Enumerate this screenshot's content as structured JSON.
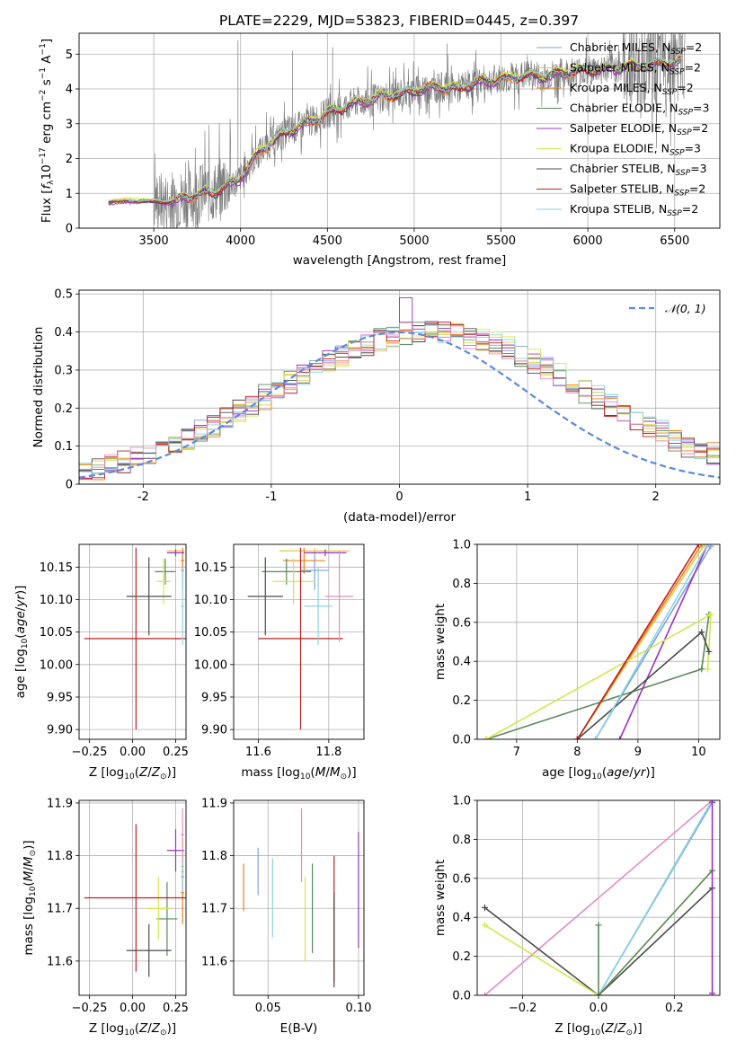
{
  "title": "PLATE=2229, MJD=53823, FIBERID=0445, z=0.397",
  "colors": {
    "Chabrier MILES": "#7f9fe6",
    "Salpeter MILES": "#e8c94a",
    "Kroupa MILES": "#f07f1a",
    "Chabrier ELODIE": "#5a8a5a",
    "Salpeter ELODIE": "#9b30c0",
    "Kroupa ELODIE": "#d4e64a",
    "Chabrier STELIB": "#4b4b4b",
    "Salpeter STELIB": "#c02020",
    "Kroupa STELIB": "#88d4e0",
    "pink": "#e88ac0",
    "dashed": "#5b8adf",
    "data": "#777777"
  },
  "legend_entries": [
    {
      "name": "Chabrier MILES",
      "sub": "2",
      "lib": "MILES"
    },
    {
      "name": "Salpeter MILES",
      "sub": "2",
      "lib": "MILES"
    },
    {
      "name": "Kroupa MILES",
      "sub": "2",
      "lib": "MILES"
    },
    {
      "name": "Chabrier ELODIE",
      "sub": "3",
      "lib": "ELODIE"
    },
    {
      "name": "Salpeter ELODIE",
      "sub": "2",
      "lib": "ELODIE"
    },
    {
      "name": "Kroupa ELODIE",
      "sub": "3",
      "lib": "ELODIE"
    },
    {
      "name": "Chabrier STELIB",
      "sub": "3",
      "lib": "STELIB"
    },
    {
      "name": "Salpeter STELIB",
      "sub": "2",
      "lib": "STELIB"
    },
    {
      "name": "Kroupa STELIB",
      "sub": "2",
      "lib": "STELIB"
    }
  ],
  "chart_data": [
    {
      "id": "spectrum",
      "type": "line",
      "xlabel": "wavelength [Angstrom, rest frame]",
      "ylabel": "Flux [f_λ 10^-17 erg cm^-2 s^-1 A^-1]",
      "xlim": [
        3070,
        6760
      ],
      "ylim": [
        0,
        5.6
      ],
      "xticks": [
        3500,
        4000,
        4500,
        5000,
        5500,
        6000,
        6500
      ],
      "yticks": [
        0,
        1,
        2,
        3,
        4,
        5
      ],
      "model": {
        "x": [
          3240,
          3280,
          3320,
          3380,
          3440,
          3500,
          3560,
          3620,
          3700,
          3780,
          3850,
          3930,
          3980,
          4050,
          4130,
          4200,
          4280,
          4350,
          4420,
          4500,
          4580,
          4660,
          4750,
          4850,
          4950,
          5050,
          5150,
          5250,
          5350,
          5450,
          5550,
          5650,
          5750,
          5850,
          5950,
          6050,
          6150,
          6250,
          6350,
          6450,
          6540
        ],
        "y": [
          0.72,
          0.8,
          0.78,
          0.76,
          0.8,
          0.76,
          0.74,
          0.78,
          0.9,
          1.0,
          1.05,
          1.25,
          1.35,
          1.8,
          2.3,
          2.55,
          2.8,
          2.95,
          3.1,
          3.3,
          3.45,
          3.6,
          3.7,
          3.8,
          3.9,
          4.0,
          4.05,
          4.0,
          4.2,
          4.25,
          4.3,
          4.4,
          4.35,
          4.45,
          4.5,
          4.55,
          4.6,
          4.65,
          4.7,
          4.75,
          4.8
        ]
      },
      "grid": true,
      "legend": "top-right"
    },
    {
      "id": "residuals",
      "type": "step",
      "xlabel": "(data-model)/error",
      "ylabel": "Normed distribution",
      "xlim": [
        -2.5,
        2.5
      ],
      "ylim": [
        0,
        0.51
      ],
      "xticks": [
        -2,
        -1,
        0,
        1,
        2
      ],
      "yticks": [
        0,
        0.1,
        0.2,
        0.3,
        0.4,
        0.5
      ],
      "gaussian_label": "𝒩(0, 1)",
      "legend": "top-right",
      "grid": true
    },
    {
      "id": "age_vs_Z",
      "type": "errorbar",
      "xlabel": "Z [log10(Z/Z⊙)]",
      "ylabel": "age [log10(age/yr)]",
      "xlim": [
        -0.31,
        0.31
      ],
      "ylim": [
        9.885,
        10.185
      ],
      "xticks": [
        -0.25,
        0,
        0.25
      ],
      "xticklabels": [
        "−0.25",
        "0.00",
        "0.25"
      ],
      "yticks": [
        9.9,
        9.95,
        10.0,
        10.05,
        10.1,
        10.15
      ],
      "yticklabels": [
        "9.90",
        "9.95",
        "10.00",
        "10.05",
        "10.10",
        "10.15"
      ],
      "points": [
        {
          "s": "Chabrier MILES",
          "x": 0.29,
          "y": 10.145,
          "xerr": 0.01,
          "yerr": 0.03
        },
        {
          "s": "Salpeter MILES",
          "x": 0.25,
          "y": 10.175,
          "xerr": 0.05,
          "yerr": 0.005
        },
        {
          "s": "Kroupa MILES",
          "x": 0.29,
          "y": 10.16,
          "xerr": 0.01,
          "yerr": 0.02
        },
        {
          "s": "Chabrier ELODIE",
          "x": 0.19,
          "y": 10.143,
          "xerr": 0.06,
          "yerr": 0.02
        },
        {
          "s": "Salpeter ELODIE",
          "x": 0.25,
          "y": 10.172,
          "xerr": 0.05,
          "yerr": 0.005
        },
        {
          "s": "Kroupa ELODIE",
          "x": 0.18,
          "y": 10.128,
          "xerr": 0.04,
          "yerr": 0.035
        },
        {
          "s": "Chabrier STELIB",
          "x": 0.095,
          "y": 10.105,
          "xerr": 0.13,
          "yerr": 0.06
        },
        {
          "s": "Salpeter STELIB",
          "x": 0.02,
          "y": 10.04,
          "xerr": 0.3,
          "yerr": 0.14
        },
        {
          "s": "Kroupa STELIB",
          "x": 0.29,
          "y": 10.09,
          "xerr": 0.01,
          "yerr": 0.06
        }
      ]
    },
    {
      "id": "age_vs_mass",
      "type": "errorbar",
      "xlabel": "mass [log10(M/M⊙)]",
      "ylabel": "",
      "xlim": [
        11.53,
        11.9
      ],
      "ylim": [
        9.885,
        10.185
      ],
      "xticks": [
        11.6,
        11.8
      ],
      "xticklabels": [
        "11.6",
        "11.8"
      ],
      "yticks": [
        9.9,
        9.95,
        10.0,
        10.05,
        10.1,
        10.15
      ],
      "yticklabels": [
        "9.90",
        "9.95",
        "10.00",
        "10.05",
        "10.10",
        "10.15"
      ],
      "points": [
        {
          "s": "Chabrier MILES",
          "x": 11.76,
          "y": 10.145,
          "xerr": 0.04,
          "yerr": 0.03
        },
        {
          "s": "Salpeter MILES",
          "x": 11.76,
          "y": 10.175,
          "xerr": 0.1,
          "yerr": 0.005
        },
        {
          "s": "Kroupa MILES",
          "x": 11.73,
          "y": 10.16,
          "xerr": 0.06,
          "yerr": 0.02
        },
        {
          "s": "Chabrier ELODIE",
          "x": 11.68,
          "y": 10.143,
          "xerr": 0.07,
          "yerr": 0.02
        },
        {
          "s": "Salpeter ELODIE",
          "x": 11.79,
          "y": 10.172,
          "xerr": 0.06,
          "yerr": 0.005
        },
        {
          "s": "Kroupa ELODIE",
          "x": 11.7,
          "y": 10.128,
          "xerr": 0.06,
          "yerr": 0.035
        },
        {
          "s": "Chabrier STELIB",
          "x": 11.62,
          "y": 10.105,
          "xerr": 0.05,
          "yerr": 0.06
        },
        {
          "s": "Salpeter STELIB",
          "x": 11.72,
          "y": 10.04,
          "xerr": 0.12,
          "yerr": 0.14
        },
        {
          "s": "Kroupa STELIB",
          "x": 11.77,
          "y": 10.09,
          "xerr": 0.04,
          "yerr": 0.06
        },
        {
          "s": "pink",
          "x": 11.83,
          "y": 10.105,
          "xerr": 0.04,
          "yerr": 0.07
        }
      ]
    },
    {
      "id": "mw_vs_age",
      "type": "line",
      "xlabel": "age [log10(age/yr)]",
      "ylabel": "mass weight",
      "xlim": [
        6.35,
        10.35
      ],
      "ylim": [
        0,
        1
      ],
      "xticks": [
        7,
        8,
        9,
        10
      ],
      "yticks": [
        0,
        0.2,
        0.4,
        0.6,
        0.8,
        1.0
      ],
      "yticklabels": [
        "0.0",
        "0.2",
        "0.4",
        "0.6",
        "0.8",
        "1.0"
      ],
      "series": [
        {
          "s": "Chabrier MILES",
          "x": [
            8.3,
            10.2
          ],
          "y": [
            0,
            0.99
          ]
        },
        {
          "s": "Salpeter MILES",
          "x": [
            8.0,
            10.1
          ],
          "y": [
            0,
            1.0
          ]
        },
        {
          "s": "Kroupa MILES",
          "x": [
            8.0,
            10.05
          ],
          "y": [
            0,
            1.0
          ]
        },
        {
          "s": "Chabrier ELODIE",
          "x": [
            6.5,
            10.05,
            10.17
          ],
          "y": [
            0,
            0.36,
            0.64
          ]
        },
        {
          "s": "Salpeter ELODIE",
          "x": [
            8.7,
            10.15
          ],
          "y": [
            0,
            1.0
          ]
        },
        {
          "s": "Kroupa ELODIE",
          "x": [
            6.5,
            10.2,
            10.15
          ],
          "y": [
            0,
            0.64,
            0.36
          ]
        },
        {
          "s": "Chabrier STELIB",
          "x": [
            8.0,
            10.05,
            10.17
          ],
          "y": [
            0,
            0.55,
            0.45
          ]
        },
        {
          "s": "Salpeter STELIB",
          "x": [
            8.0,
            10.0
          ],
          "y": [
            0,
            1.0
          ]
        },
        {
          "s": "Kroupa STELIB",
          "x": [
            8.3,
            10.15
          ],
          "y": [
            0,
            1.0
          ]
        }
      ]
    },
    {
      "id": "mass_vs_Z",
      "type": "errorbar",
      "xlabel": "Z [log10(Z/Z⊙)]",
      "ylabel": "mass [log10(M/M⊙)]",
      "xlim": [
        -0.31,
        0.31
      ],
      "ylim": [
        11.535,
        11.905
      ],
      "xticks": [
        -0.25,
        0,
        0.25
      ],
      "xticklabels": [
        "−0.25",
        "0.00",
        "0.25"
      ],
      "yticks": [
        11.6,
        11.7,
        11.8,
        11.9
      ],
      "yticklabels": [
        "11.6",
        "11.7",
        "11.8",
        "11.9"
      ],
      "points": [
        {
          "s": "Chabrier MILES",
          "x": 0.29,
          "y": 11.76,
          "xerr": 0.01,
          "yerr": 0.04
        },
        {
          "s": "Salpeter MILES",
          "x": 0.29,
          "y": 11.78,
          "xerr": 0.01,
          "yerr": 0.05
        },
        {
          "s": "Kroupa MILES",
          "x": 0.29,
          "y": 11.73,
          "xerr": 0.01,
          "yerr": 0.06
        },
        {
          "s": "Chabrier ELODIE",
          "x": 0.2,
          "y": 11.68,
          "xerr": 0.06,
          "yerr": 0.07
        },
        {
          "s": "Salpeter ELODIE",
          "x": 0.25,
          "y": 11.81,
          "xerr": 0.05,
          "yerr": 0.04
        },
        {
          "s": "Kroupa ELODIE",
          "x": 0.15,
          "y": 11.7,
          "xerr": 0.07,
          "yerr": 0.06
        },
        {
          "s": "Chabrier STELIB",
          "x": 0.095,
          "y": 11.62,
          "xerr": 0.13,
          "yerr": 0.05
        },
        {
          "s": "Salpeter STELIB",
          "x": 0.02,
          "y": 11.72,
          "xerr": 0.3,
          "yerr": 0.14
        },
        {
          "s": "Kroupa STELIB",
          "x": 0.29,
          "y": 11.77,
          "xerr": 0.01,
          "yerr": 0.04
        },
        {
          "s": "pink",
          "x": 0.29,
          "y": 11.84,
          "xerr": 0.01,
          "yerr": 0.05
        }
      ]
    },
    {
      "id": "mass_vs_ebv",
      "type": "errorbar",
      "xlabel": "E(B-V)",
      "ylabel": "",
      "xlim": [
        0.031,
        0.103
      ],
      "ylim": [
        11.535,
        11.905
      ],
      "xticks": [
        0.05,
        0.1
      ],
      "xticklabels": [
        "0.05",
        "0.10"
      ],
      "yticks": [
        11.6,
        11.7,
        11.8,
        11.9
      ],
      "yticklabels": [
        "11.6",
        "11.7",
        "11.8",
        "11.9"
      ],
      "points": [
        {
          "s": "Kroupa MILES",
          "x": 0.0365,
          "y": 11.74,
          "xerr": 0,
          "yerr": 0.045
        },
        {
          "s": "Chabrier MILES",
          "x": 0.0445,
          "y": 11.77,
          "xerr": 0,
          "yerr": 0.045
        },
        {
          "s": "Kroupa STELIB",
          "x": 0.0525,
          "y": 11.72,
          "xerr": 0,
          "yerr": 0.075
        },
        {
          "s": "Chabrier ELODIE",
          "x": 0.0745,
          "y": 11.7,
          "xerr": 0,
          "yerr": 0.085
        },
        {
          "s": "pink",
          "x": 0.0685,
          "y": 11.82,
          "xerr": 0,
          "yerr": 0.07
        },
        {
          "s": "Kroupa ELODIE",
          "x": 0.0705,
          "y": 11.68,
          "xerr": 0,
          "yerr": 0.08
        },
        {
          "s": "Salpeter STELIB",
          "x": 0.0865,
          "y": 11.68,
          "xerr": 0,
          "yerr": 0.12
        },
        {
          "s": "Chabrier STELIB",
          "x": 0.0865,
          "y": 11.64,
          "xerr": 0,
          "yerr": 0.09
        },
        {
          "s": "Salpeter ELODIE",
          "x": 0.1,
          "y": 11.735,
          "xerr": 0,
          "yerr": 0.11
        }
      ]
    },
    {
      "id": "mw_vs_Z",
      "type": "line",
      "xlabel": "Z [log10(Z/Z⊙)]",
      "ylabel": "mass weight",
      "xlim": [
        -0.32,
        0.32
      ],
      "ylim": [
        0,
        1
      ],
      "xticks": [
        -0.2,
        0,
        0.2
      ],
      "xticklabels": [
        "−0.2",
        "0.0",
        "0.2"
      ],
      "yticks": [
        0,
        0.2,
        0.4,
        0.6,
        0.8,
        1.0
      ],
      "yticklabels": [
        "0.0",
        "0.2",
        "0.4",
        "0.6",
        "0.8",
        "1.0"
      ],
      "series": [
        {
          "s": "pink",
          "x": [
            -0.3,
            0.3
          ],
          "y": [
            0,
            1.0
          ]
        },
        {
          "s": "Chabrier MILES",
          "x": [
            0.0,
            0.3
          ],
          "y": [
            0,
            0.99
          ]
        },
        {
          "s": "Kroupa STELIB",
          "x": [
            0.0,
            0.3
          ],
          "y": [
            0,
            1.0
          ]
        },
        {
          "s": "Chabrier STELIB",
          "x": [
            -0.3,
            0.0,
            0.3
          ],
          "y": [
            0.45,
            0,
            0.55
          ]
        },
        {
          "s": "Kroupa ELODIE",
          "x": [
            -0.3,
            0.0,
            0.3
          ],
          "y": [
            0.36,
            0,
            0.64
          ]
        },
        {
          "s": "Chabrier ELODIE",
          "x": [
            0.0,
            0.0,
            0.3
          ],
          "y": [
            0.36,
            0,
            0.64
          ]
        },
        {
          "s": "Salpeter ELODIE",
          "x": [
            0.3,
            0.3
          ],
          "y": [
            0.01,
            0.99
          ]
        }
      ]
    }
  ]
}
